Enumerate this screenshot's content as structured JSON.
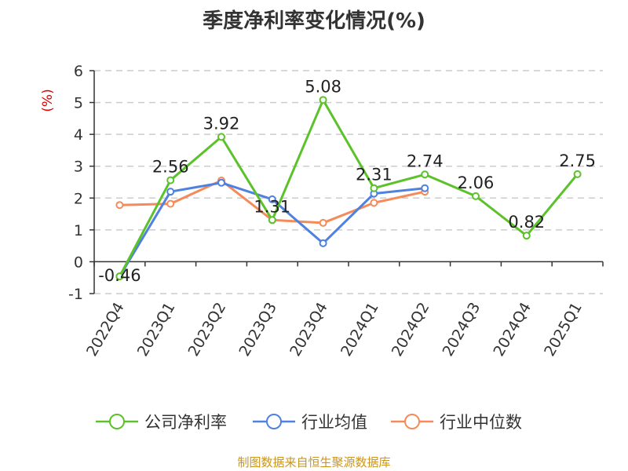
{
  "chart_data": {
    "type": "line",
    "title": "季度净利率变化情况(%)",
    "ylabel": "(%)",
    "categories": [
      "2022Q4",
      "2023Q1",
      "2023Q2",
      "2023Q3",
      "2023Q4",
      "2024Q1",
      "2024Q2",
      "2024Q3",
      "2024Q4",
      "2025Q1"
    ],
    "ylim": [
      -1,
      6
    ],
    "yticks": [
      -1,
      0,
      1,
      2,
      3,
      4,
      5,
      6
    ],
    "grid": true,
    "legend_position": "bottom",
    "series": [
      {
        "name": "公司净利率",
        "color": "#5bc22a",
        "values": [
          -0.46,
          2.56,
          3.92,
          1.31,
          5.08,
          2.31,
          2.74,
          2.06,
          0.82,
          2.75
        ],
        "labels": [
          "-0.46",
          "2.56",
          "3.92",
          "1.31",
          "5.08",
          "2.31",
          "2.74",
          "2.06",
          "0.82",
          "2.75"
        ]
      },
      {
        "name": "行业均值",
        "color": "#4f81e0",
        "values": [
          -0.46,
          2.2,
          2.48,
          1.96,
          0.58,
          2.14,
          2.31,
          null,
          null,
          null
        ]
      },
      {
        "name": "行业中位数",
        "color": "#f58a5a",
        "values": [
          1.78,
          1.82,
          2.55,
          1.31,
          1.22,
          1.85,
          2.2,
          null,
          null,
          null
        ]
      }
    ]
  },
  "source": "制图数据来自恒生聚源数据库",
  "colors": {
    "unit_label": "#e00000",
    "grid": "#cccccc",
    "axis": "#333333"
  }
}
